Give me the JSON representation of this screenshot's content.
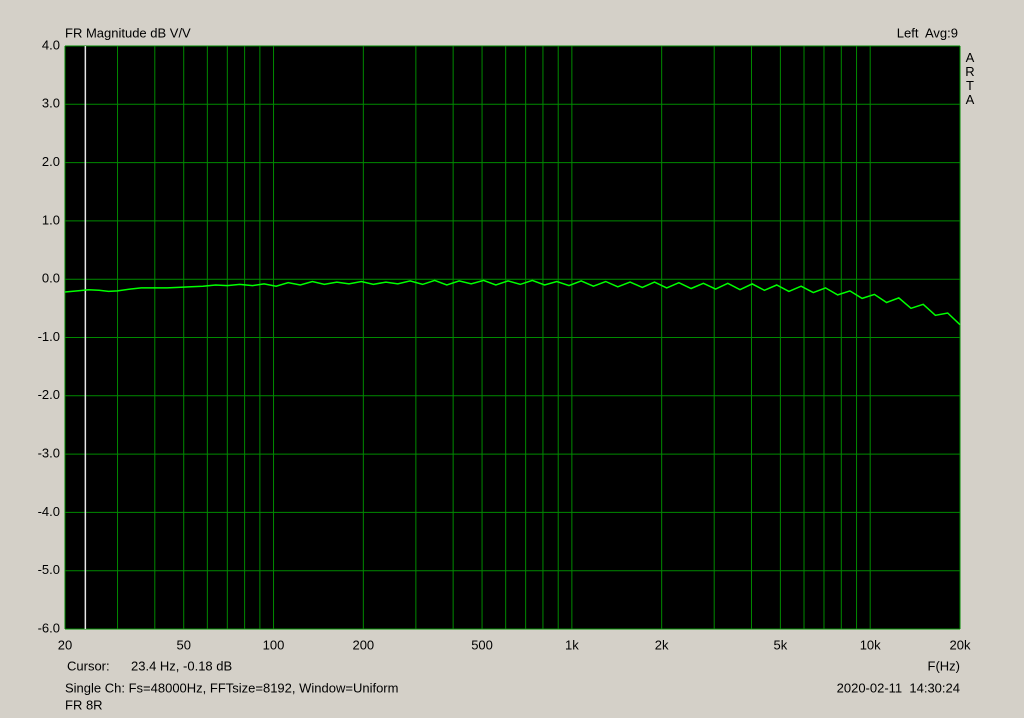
{
  "chart_data": {
    "type": "line",
    "title": "FR Magnitude dB V/V",
    "channel_info": "Left  Avg:9",
    "brand": "ARTA",
    "x_label": "F(Hz)",
    "cursor": {
      "label": "Cursor:",
      "text": "23.4 Hz, -0.18 dB",
      "x": 23.4
    },
    "settings": "Single Ch: Fs=48000Hz, FFTsize=8192, Window=Uniform",
    "timestamp": "2020-02-11  14:30:24",
    "x_log": true,
    "xlim": [
      20,
      20000
    ],
    "xticks": [
      20,
      50,
      100,
      200,
      500,
      {
        "value": 1000,
        "label": "1k"
      },
      {
        "value": 2000,
        "label": "2k"
      },
      {
        "value": 5000,
        "label": "5k"
      },
      {
        "value": 10000,
        "label": "10k"
      },
      {
        "value": 20000,
        "label": "20k"
      }
    ],
    "x_minor_grid": [
      30,
      40,
      60,
      70,
      80,
      90,
      300,
      400,
      600,
      700,
      800,
      900,
      3000,
      4000,
      6000,
      7000,
      8000,
      9000
    ],
    "ylim": [
      -6,
      4
    ],
    "yticks": [
      {
        "value": -6,
        "label": "-6.0"
      },
      {
        "value": -5,
        "label": "-5.0"
      },
      {
        "value": -4,
        "label": "-4.0"
      },
      {
        "value": -3,
        "label": "-3.0"
      },
      {
        "value": -2,
        "label": "-2.0"
      },
      {
        "value": -1,
        "label": "-1.0"
      },
      {
        "value": 0,
        "label": "0.0"
      },
      {
        "value": 1,
        "label": "1.0"
      },
      {
        "value": 2,
        "label": "2.0"
      },
      {
        "value": 3,
        "label": "3.0"
      },
      {
        "value": 4,
        "label": "4.0"
      }
    ],
    "grid": true,
    "x": [
      20,
      22,
      24,
      26,
      28,
      30,
      33,
      36,
      40,
      44,
      48,
      53,
      58,
      64,
      70,
      77,
      85,
      93,
      102,
      112,
      123,
      135,
      148,
      163,
      179,
      197,
      216,
      238,
      261,
      287,
      316,
      347,
      381,
      419,
      460,
      506,
      556,
      611,
      671,
      737,
      810,
      890,
      978,
      1075,
      1181,
      1298,
      1426,
      1567,
      1722,
      1892,
      2079,
      2285,
      2511,
      2759,
      3032,
      3332,
      3661,
      4023,
      4421,
      4858,
      5338,
      5866,
      6446,
      7083,
      7783,
      8553,
      9398,
      10327,
      11348,
      12470,
      13703,
      15058,
      16546,
      18182,
      20000
    ],
    "series": [
      {
        "name": "FR 8R",
        "color": "#00ff00",
        "values": [
          -0.22,
          -0.2,
          -0.18,
          -0.19,
          -0.21,
          -0.2,
          -0.17,
          -0.15,
          -0.15,
          -0.15,
          -0.14,
          -0.13,
          -0.12,
          -0.1,
          -0.11,
          -0.09,
          -0.11,
          -0.08,
          -0.12,
          -0.06,
          -0.1,
          -0.04,
          -0.09,
          -0.05,
          -0.08,
          -0.04,
          -0.09,
          -0.05,
          -0.08,
          -0.03,
          -0.09,
          -0.02,
          -0.1,
          -0.03,
          -0.08,
          -0.02,
          -0.1,
          -0.03,
          -0.09,
          -0.02,
          -0.1,
          -0.04,
          -0.11,
          -0.03,
          -0.12,
          -0.04,
          -0.13,
          -0.05,
          -0.14,
          -0.05,
          -0.15,
          -0.06,
          -0.16,
          -0.07,
          -0.17,
          -0.07,
          -0.18,
          -0.08,
          -0.19,
          -0.1,
          -0.21,
          -0.12,
          -0.23,
          -0.15,
          -0.27,
          -0.2,
          -0.33,
          -0.26,
          -0.4,
          -0.32,
          -0.5,
          -0.43,
          -0.62,
          -0.58,
          -0.78
        ]
      }
    ]
  }
}
